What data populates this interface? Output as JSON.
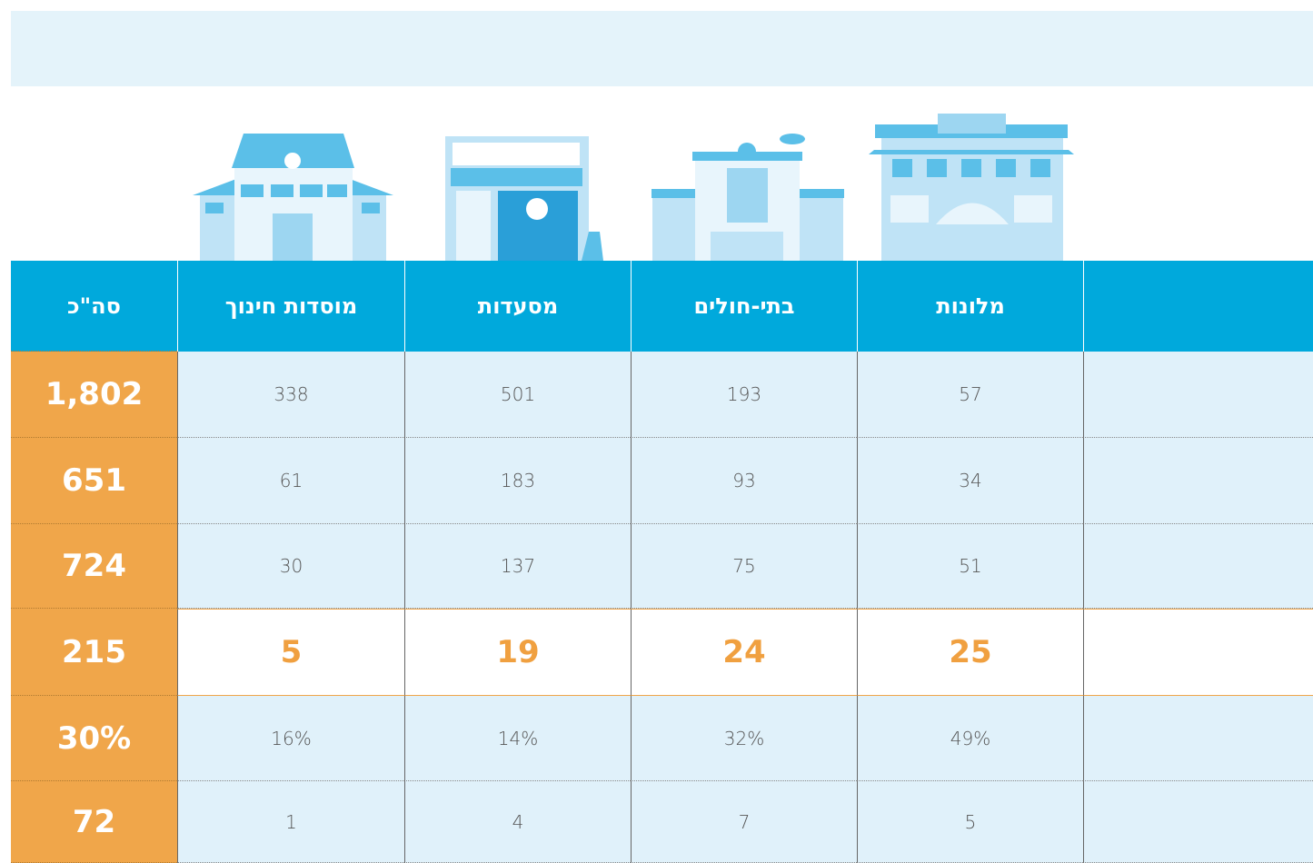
{
  "table": {
    "header": [
      "מלונות",
      "בתי-חולים",
      "מסעדות",
      "מוסדות חינוך",
      "סה\"כ"
    ],
    "rows": [
      [
        "57",
        "193",
        "501",
        "338",
        "1,802"
      ],
      [
        "34",
        "93",
        "183",
        "61",
        "651"
      ],
      [
        "51",
        "75",
        "137",
        "30",
        "724"
      ],
      [
        "25",
        "24",
        "19",
        "5",
        "215"
      ],
      [
        "49%",
        "32%",
        "14%",
        "16%",
        "30%"
      ],
      [
        "5",
        "7",
        "4",
        "1",
        "72"
      ]
    ]
  }
}
